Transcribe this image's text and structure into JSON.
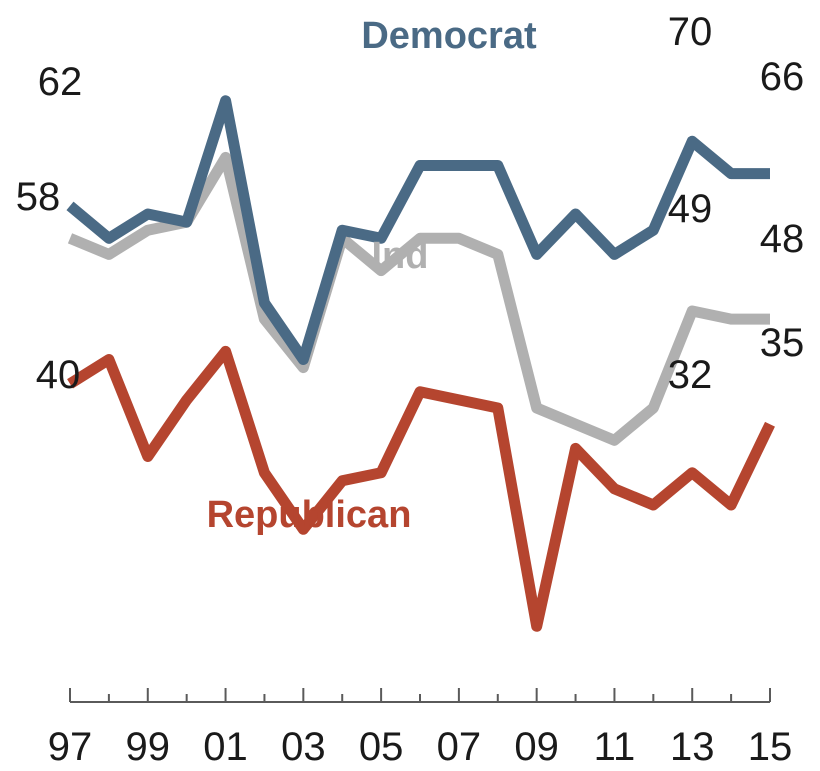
{
  "colors": {
    "democrat": "#4a6a85",
    "independent": "#b0b0b0",
    "republican": "#b5452f",
    "axis": "#5a5a5a",
    "text": "#1a1a1a"
  },
  "chart_data": {
    "type": "line",
    "title": "",
    "xlabel": "",
    "ylabel": "",
    "grid": false,
    "ylim": [
      25,
      85
    ],
    "x": [
      1997,
      1998,
      1999,
      2000,
      2001,
      2002,
      2003,
      2004,
      2005,
      2006,
      2007,
      2008,
      2009,
      2010,
      2011,
      2012,
      2013,
      2014,
      2015
    ],
    "x_ticks": [
      "97",
      "99",
      "01",
      "03",
      "05",
      "07",
      "09",
      "11",
      "13",
      "15"
    ],
    "series": [
      {
        "name": "Democrat",
        "key": "democrat",
        "values": [
          62,
          58,
          61,
          60,
          75,
          50,
          43,
          59,
          58,
          67,
          67,
          67,
          56,
          61,
          56,
          59,
          70,
          66,
          66
        ]
      },
      {
        "name": "Ind",
        "key": "independent",
        "values": [
          58,
          56,
          59,
          60,
          68,
          48,
          42,
          58,
          54,
          58,
          58,
          56,
          37,
          35,
          33,
          37,
          49,
          48,
          48
        ]
      },
      {
        "name": "Republican",
        "key": "republican",
        "values": [
          40,
          43,
          31,
          38,
          44,
          29,
          22,
          28,
          29,
          39,
          38,
          37,
          10,
          32,
          27,
          25,
          29,
          25,
          35
        ]
      }
    ],
    "end_labels": [
      {
        "series": "democrat",
        "first": "62",
        "high": "70",
        "last": "66"
      },
      {
        "series": "independent",
        "first": "58",
        "high": "49",
        "last": "48"
      },
      {
        "series": "republican",
        "first": "40",
        "high": "32",
        "last": "35"
      }
    ]
  }
}
